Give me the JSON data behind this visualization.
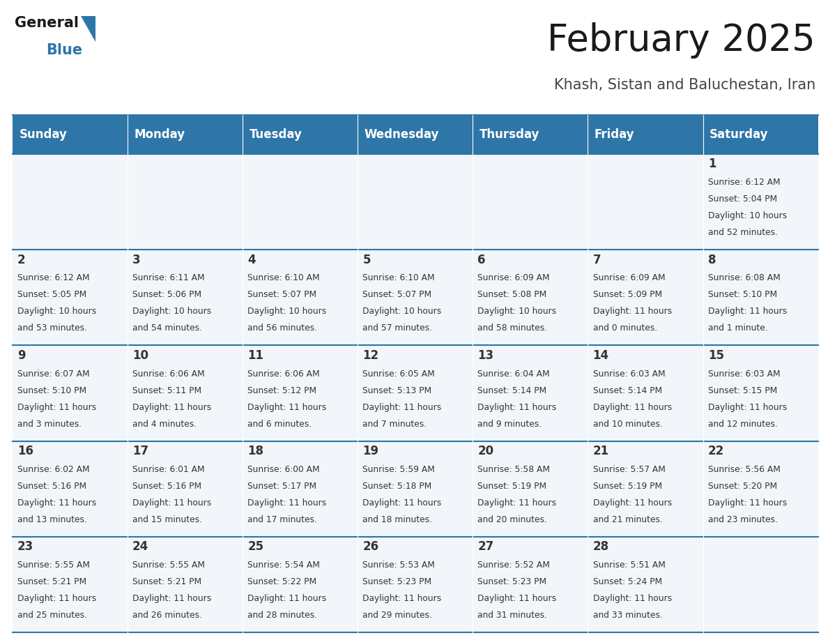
{
  "title": "February 2025",
  "subtitle": "Khash, Sistan and Baluchestan, Iran",
  "header_color": "#2E75A8",
  "header_text_color": "#FFFFFF",
  "cell_bg_color": "#F2F6FA",
  "border_color": "#2E75A8",
  "text_color": "#333333",
  "logo_general_color": "#1A1A1A",
  "logo_blue_color": "#2E75A8",
  "logo_triangle_color": "#2E75A8",
  "day_names": [
    "Sunday",
    "Monday",
    "Tuesday",
    "Wednesday",
    "Thursday",
    "Friday",
    "Saturday"
  ],
  "title_fontsize": 38,
  "subtitle_fontsize": 15,
  "header_fontsize": 12,
  "day_num_fontsize": 12,
  "cell_text_fontsize": 8.8,
  "logo_fontsize": 15,
  "days": [
    {
      "day": 1,
      "col": 6,
      "row": 0,
      "sunrise": "6:12 AM",
      "sunset": "5:04 PM",
      "daylight_hours": 10,
      "daylight_minutes": 52
    },
    {
      "day": 2,
      "col": 0,
      "row": 1,
      "sunrise": "6:12 AM",
      "sunset": "5:05 PM",
      "daylight_hours": 10,
      "daylight_minutes": 53
    },
    {
      "day": 3,
      "col": 1,
      "row": 1,
      "sunrise": "6:11 AM",
      "sunset": "5:06 PM",
      "daylight_hours": 10,
      "daylight_minutes": 54
    },
    {
      "day": 4,
      "col": 2,
      "row": 1,
      "sunrise": "6:10 AM",
      "sunset": "5:07 PM",
      "daylight_hours": 10,
      "daylight_minutes": 56
    },
    {
      "day": 5,
      "col": 3,
      "row": 1,
      "sunrise": "6:10 AM",
      "sunset": "5:07 PM",
      "daylight_hours": 10,
      "daylight_minutes": 57
    },
    {
      "day": 6,
      "col": 4,
      "row": 1,
      "sunrise": "6:09 AM",
      "sunset": "5:08 PM",
      "daylight_hours": 10,
      "daylight_minutes": 58
    },
    {
      "day": 7,
      "col": 5,
      "row": 1,
      "sunrise": "6:09 AM",
      "sunset": "5:09 PM",
      "daylight_hours": 11,
      "daylight_minutes": 0
    },
    {
      "day": 8,
      "col": 6,
      "row": 1,
      "sunrise": "6:08 AM",
      "sunset": "5:10 PM",
      "daylight_hours": 11,
      "daylight_minutes": 1
    },
    {
      "day": 9,
      "col": 0,
      "row": 2,
      "sunrise": "6:07 AM",
      "sunset": "5:10 PM",
      "daylight_hours": 11,
      "daylight_minutes": 3
    },
    {
      "day": 10,
      "col": 1,
      "row": 2,
      "sunrise": "6:06 AM",
      "sunset": "5:11 PM",
      "daylight_hours": 11,
      "daylight_minutes": 4
    },
    {
      "day": 11,
      "col": 2,
      "row": 2,
      "sunrise": "6:06 AM",
      "sunset": "5:12 PM",
      "daylight_hours": 11,
      "daylight_minutes": 6
    },
    {
      "day": 12,
      "col": 3,
      "row": 2,
      "sunrise": "6:05 AM",
      "sunset": "5:13 PM",
      "daylight_hours": 11,
      "daylight_minutes": 7
    },
    {
      "day": 13,
      "col": 4,
      "row": 2,
      "sunrise": "6:04 AM",
      "sunset": "5:14 PM",
      "daylight_hours": 11,
      "daylight_minutes": 9
    },
    {
      "day": 14,
      "col": 5,
      "row": 2,
      "sunrise": "6:03 AM",
      "sunset": "5:14 PM",
      "daylight_hours": 11,
      "daylight_minutes": 10
    },
    {
      "day": 15,
      "col": 6,
      "row": 2,
      "sunrise": "6:03 AM",
      "sunset": "5:15 PM",
      "daylight_hours": 11,
      "daylight_minutes": 12
    },
    {
      "day": 16,
      "col": 0,
      "row": 3,
      "sunrise": "6:02 AM",
      "sunset": "5:16 PM",
      "daylight_hours": 11,
      "daylight_minutes": 13
    },
    {
      "day": 17,
      "col": 1,
      "row": 3,
      "sunrise": "6:01 AM",
      "sunset": "5:16 PM",
      "daylight_hours": 11,
      "daylight_minutes": 15
    },
    {
      "day": 18,
      "col": 2,
      "row": 3,
      "sunrise": "6:00 AM",
      "sunset": "5:17 PM",
      "daylight_hours": 11,
      "daylight_minutes": 17
    },
    {
      "day": 19,
      "col": 3,
      "row": 3,
      "sunrise": "5:59 AM",
      "sunset": "5:18 PM",
      "daylight_hours": 11,
      "daylight_minutes": 18
    },
    {
      "day": 20,
      "col": 4,
      "row": 3,
      "sunrise": "5:58 AM",
      "sunset": "5:19 PM",
      "daylight_hours": 11,
      "daylight_minutes": 20
    },
    {
      "day": 21,
      "col": 5,
      "row": 3,
      "sunrise": "5:57 AM",
      "sunset": "5:19 PM",
      "daylight_hours": 11,
      "daylight_minutes": 21
    },
    {
      "day": 22,
      "col": 6,
      "row": 3,
      "sunrise": "5:56 AM",
      "sunset": "5:20 PM",
      "daylight_hours": 11,
      "daylight_minutes": 23
    },
    {
      "day": 23,
      "col": 0,
      "row": 4,
      "sunrise": "5:55 AM",
      "sunset": "5:21 PM",
      "daylight_hours": 11,
      "daylight_minutes": 25
    },
    {
      "day": 24,
      "col": 1,
      "row": 4,
      "sunrise": "5:55 AM",
      "sunset": "5:21 PM",
      "daylight_hours": 11,
      "daylight_minutes": 26
    },
    {
      "day": 25,
      "col": 2,
      "row": 4,
      "sunrise": "5:54 AM",
      "sunset": "5:22 PM",
      "daylight_hours": 11,
      "daylight_minutes": 28
    },
    {
      "day": 26,
      "col": 3,
      "row": 4,
      "sunrise": "5:53 AM",
      "sunset": "5:23 PM",
      "daylight_hours": 11,
      "daylight_minutes": 29
    },
    {
      "day": 27,
      "col": 4,
      "row": 4,
      "sunrise": "5:52 AM",
      "sunset": "5:23 PM",
      "daylight_hours": 11,
      "daylight_minutes": 31
    },
    {
      "day": 28,
      "col": 5,
      "row": 4,
      "sunrise": "5:51 AM",
      "sunset": "5:24 PM",
      "daylight_hours": 11,
      "daylight_minutes": 33
    }
  ]
}
